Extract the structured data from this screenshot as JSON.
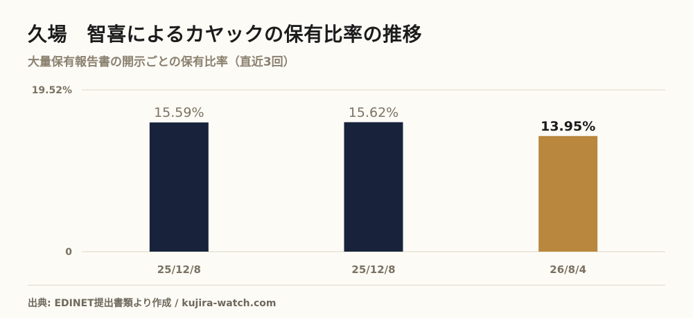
{
  "title": "久場　智喜によるカヤックの保有比率の推移",
  "subtitle": "大量保有報告書の開示ごとの保有比率（直近3回）",
  "source": "出典: EDINET提出書類より作成 / kujira-watch.com",
  "colors": {
    "bar_default": "#18233b",
    "bar_highlight": "#b9873d",
    "label_muted": "#7b7262",
    "label_strong": "#1a1a1a",
    "grid": "#ddd7c7"
  },
  "chart_data": {
    "type": "bar",
    "categories": [
      "25/12/8",
      "25/12/8",
      "26/8/4"
    ],
    "values": [
      15.59,
      15.62,
      13.95
    ],
    "value_labels": [
      "15.59%",
      "15.62%",
      "13.95%"
    ],
    "highlight_index": 2,
    "ylim": [
      0,
      19.52
    ],
    "y_ticks": [
      0,
      19.52
    ],
    "y_tick_labels": [
      "0",
      "19.52%"
    ],
    "xlabel": "",
    "ylabel": "",
    "grid": true
  }
}
